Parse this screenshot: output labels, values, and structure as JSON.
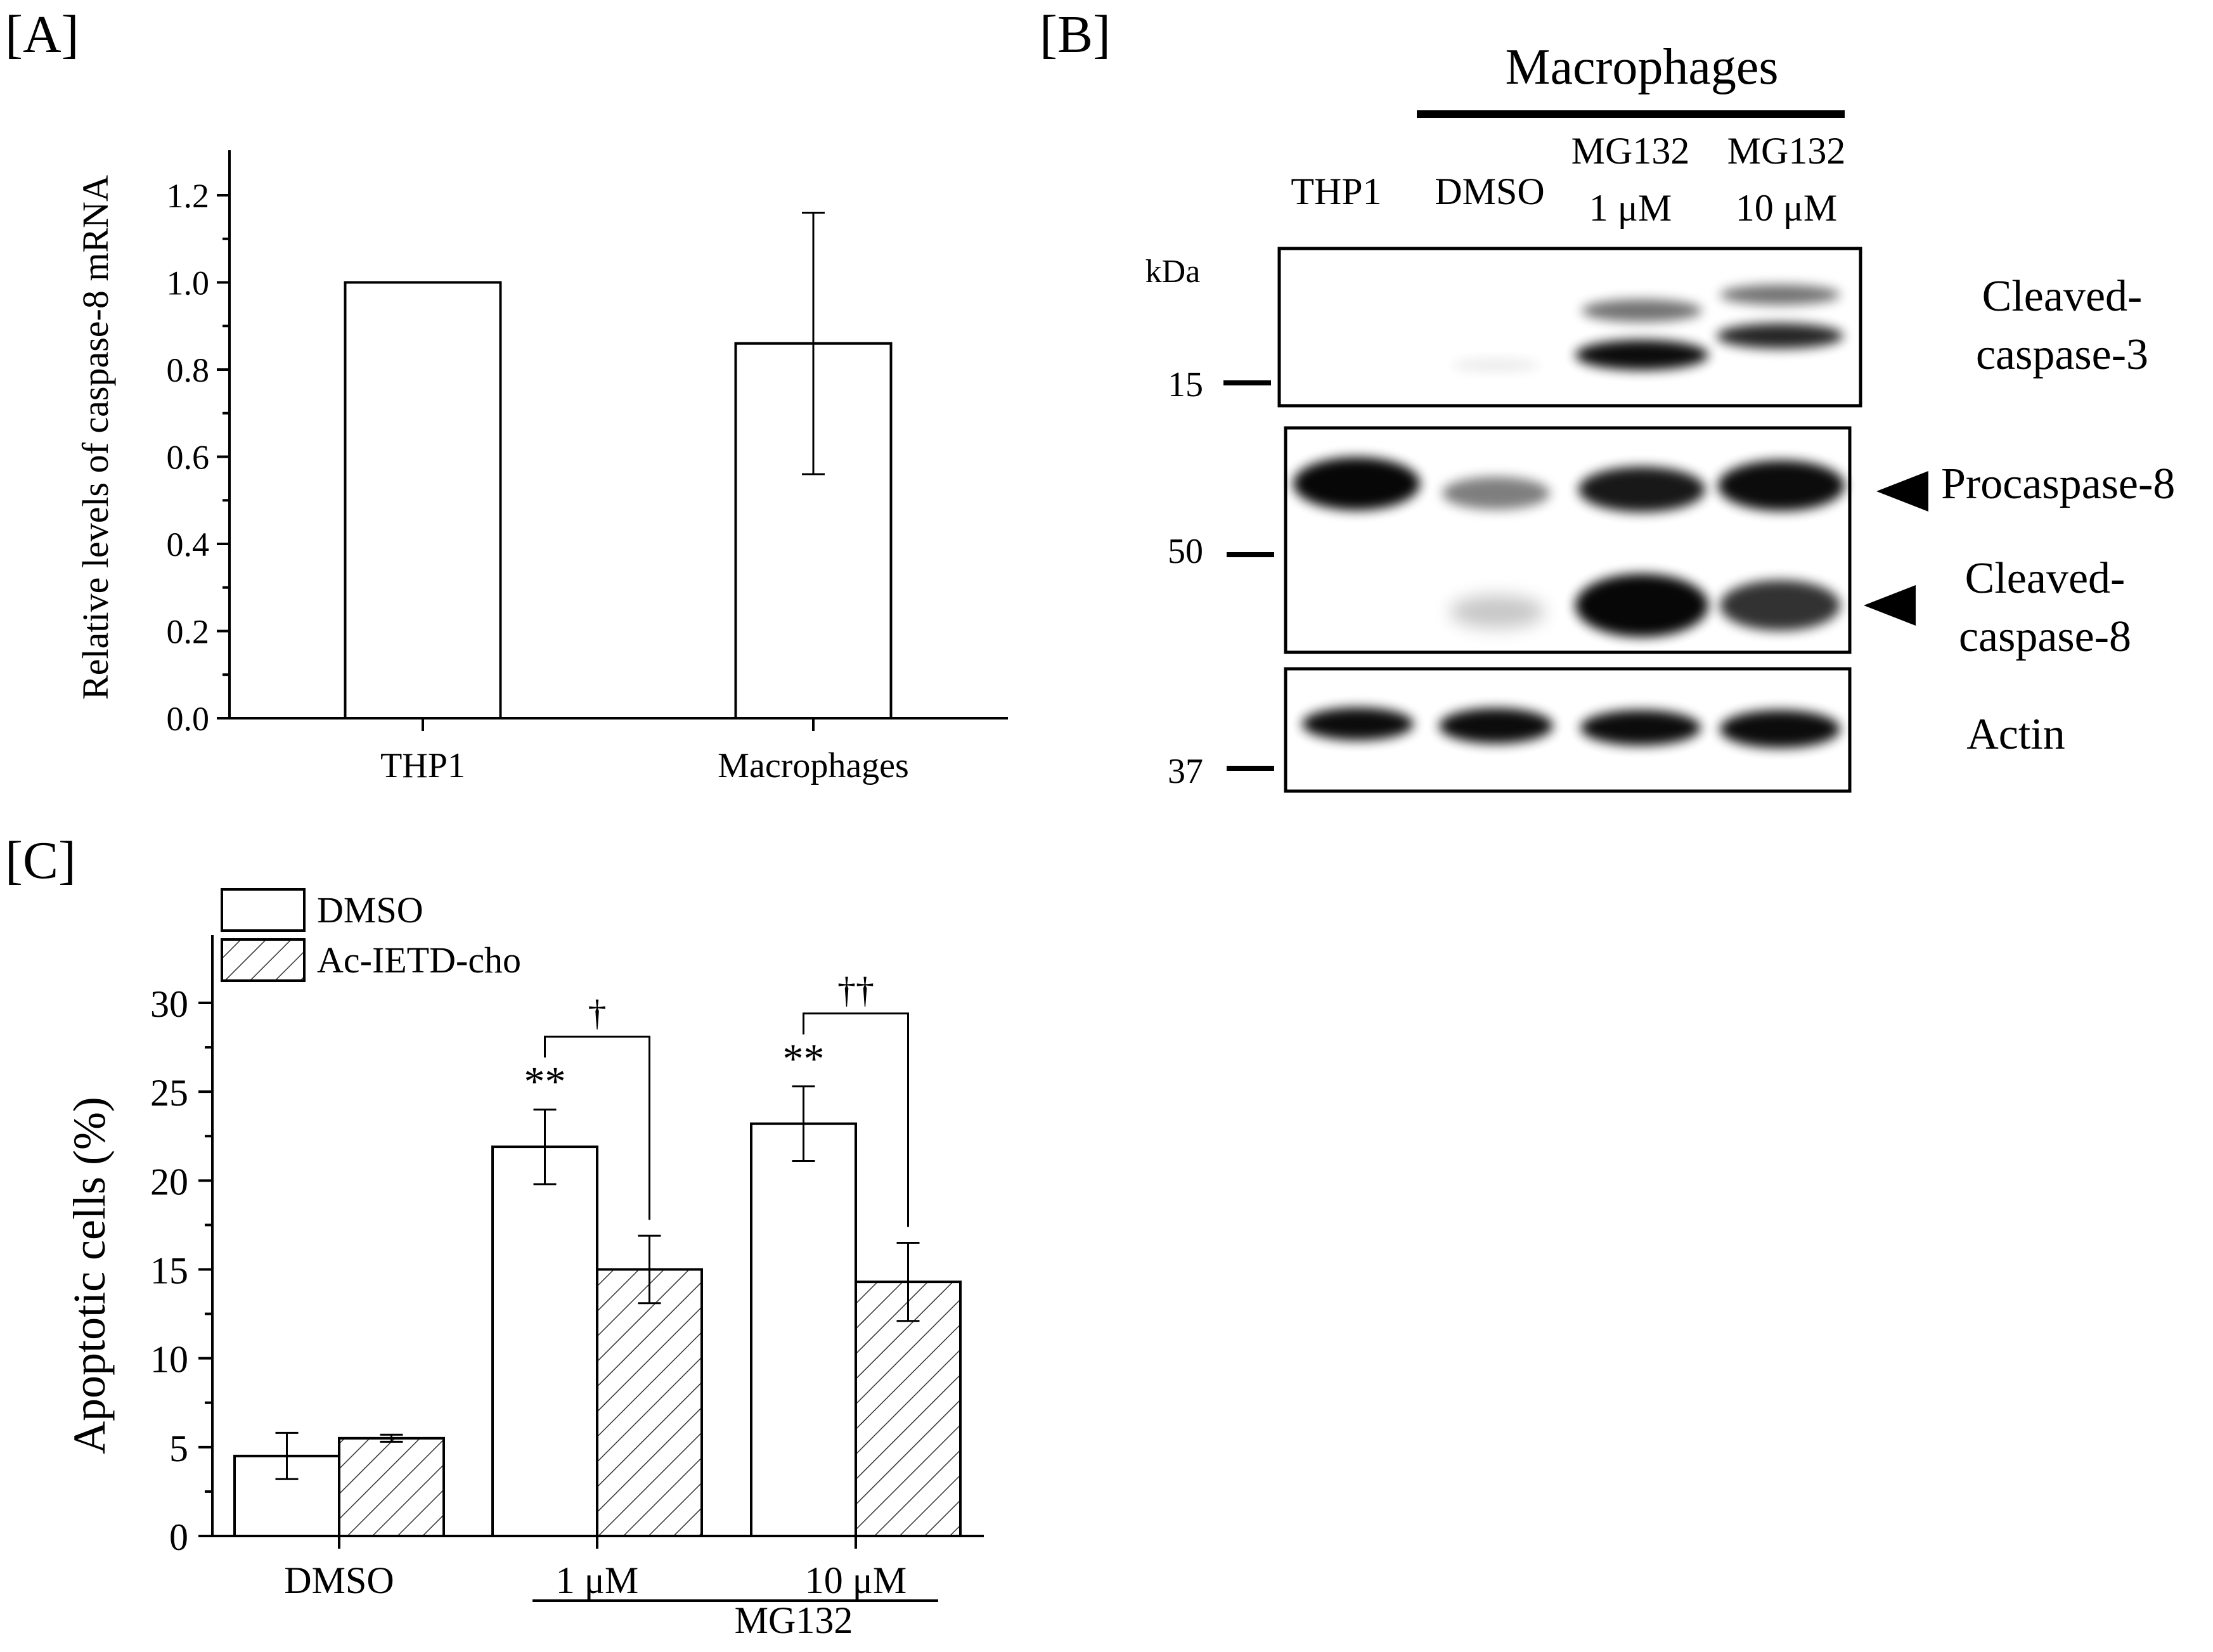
{
  "panel_labels": {
    "a": "[A]",
    "b": "[B]",
    "c": "[C]"
  },
  "chart_data": [
    {
      "panel": "A",
      "type": "bar",
      "categories": [
        "THP1",
        "Macrophages"
      ],
      "values": [
        1.0,
        0.86
      ],
      "errors": [
        0.0,
        0.3
      ],
      "ylabel": "Relative levels of caspase-8 mRNA",
      "xlabel": "",
      "ylim": [
        0.0,
        1.2
      ],
      "yticks": [
        "0.0",
        "0.2",
        "0.4",
        "0.6",
        "0.8",
        "1.0",
        "1.2"
      ],
      "legend": false,
      "grid": false
    },
    {
      "panel": "C",
      "type": "bar",
      "categories": [
        "DMSO",
        "1 μM",
        "10 μM"
      ],
      "group_label": "MG132",
      "series": [
        {
          "name": "DMSO",
          "values": [
            4.5,
            21.9,
            23.2
          ],
          "errors": [
            1.3,
            2.1,
            2.1
          ],
          "fill": "white"
        },
        {
          "name": "Ac-IETD-cho",
          "values": [
            5.5,
            15.0,
            14.3
          ],
          "errors": [
            0.2,
            1.9,
            2.2
          ],
          "fill": "hatched"
        }
      ],
      "ylabel": "Apoptotic cells (%)",
      "ylim": [
        0,
        32
      ],
      "yticks": [
        "0",
        "5",
        "10",
        "15",
        "20",
        "25",
        "30"
      ],
      "legend": "top-left",
      "annotations": {
        "stars": [
          "**",
          "**"
        ],
        "daggers": [
          "†",
          "††"
        ]
      },
      "grid": false
    }
  ],
  "blot": {
    "group_header": "Macrophages",
    "lanes": [
      {
        "line1": "THP1",
        "line2": ""
      },
      {
        "line1": "DMSO",
        "line2": ""
      },
      {
        "line1": "MG132",
        "line2": "1 μM"
      },
      {
        "line1": "MG132",
        "line2": "10 μM"
      }
    ],
    "kda_label": "kDa",
    "markers": [
      "15",
      "50",
      "37"
    ],
    "bands": {
      "cleaved_caspase3": {
        "line1": "Cleaved-",
        "line2": "caspase-3"
      },
      "procaspase8": "Procaspase-8",
      "cleaved_caspase8": {
        "line1": "Cleaved-",
        "line2": "caspase-8"
      },
      "actin": "Actin"
    }
  }
}
